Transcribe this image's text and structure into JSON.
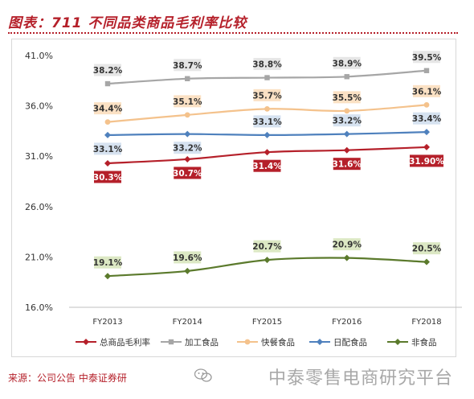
{
  "header": {
    "title": "图表：711 不同品类商品毛利率比较"
  },
  "footer": {
    "source": "来源：公司公告  中泰证券研",
    "watermark": "中泰零售电商研究平台"
  },
  "chart_data": {
    "type": "line",
    "categories": [
      "FY2013",
      "FY2014",
      "FY2015",
      "FY2016",
      "FY2018"
    ],
    "ylim": [
      16.0,
      41.0
    ],
    "yticks": [
      "16.0%",
      "21.0%",
      "26.0%",
      "31.0%",
      "36.0%",
      "41.0%"
    ],
    "ytick_values": [
      16,
      21,
      26,
      31,
      36,
      41
    ],
    "legend_position": "bottom",
    "series": [
      {
        "name": "总商品毛利率",
        "color": "#b5202a",
        "marker": "diamond",
        "values": [
          30.3,
          30.7,
          31.4,
          31.6,
          31.9
        ],
        "labels": [
          "30.3%",
          "30.7%",
          "31.4%",
          "31.6%",
          "31.90%"
        ],
        "label_style": "filled",
        "label_bg": "#b5202a",
        "label_fg": "#ffffff",
        "label_side": "below"
      },
      {
        "name": "加工食品",
        "color": "#a6a6a6",
        "marker": "square",
        "values": [
          38.2,
          38.7,
          38.8,
          38.9,
          39.5
        ],
        "labels": [
          "38.2%",
          "38.7%",
          "38.8%",
          "38.9%",
          "39.5%"
        ],
        "label_style": "box",
        "label_bg": "#e6e6e6",
        "label_fg": "#333333",
        "label_side": "above"
      },
      {
        "name": "快餐食品",
        "color": "#f4c28c",
        "marker": "circle",
        "values": [
          34.4,
          35.1,
          35.7,
          35.5,
          36.1
        ],
        "labels": [
          "34.4%",
          "35.1%",
          "35.7%",
          "35.5%",
          "36.1%"
        ],
        "label_style": "box",
        "label_bg": "#fbe1c4",
        "label_fg": "#333333",
        "label_side": "above"
      },
      {
        "name": "日配食品",
        "color": "#4f81bd",
        "marker": "diamond",
        "values": [
          33.1,
          33.2,
          33.1,
          33.2,
          33.4
        ],
        "labels": [
          "33.1%",
          "33.2%",
          "33.1%",
          "33.2%",
          "33.4%"
        ],
        "label_style": "box",
        "label_bg": "#d6e2f0",
        "label_fg": "#333333",
        "label_side": "mixed"
      },
      {
        "name": "非食品",
        "color": "#5b7a2c",
        "marker": "diamond",
        "values": [
          19.1,
          19.6,
          20.7,
          20.9,
          20.5
        ],
        "labels": [
          "19.1%",
          "19.6%",
          "20.7%",
          "20.9%",
          "20.5%"
        ],
        "label_style": "box",
        "label_bg": "#dce8c4",
        "label_fg": "#333333",
        "label_side": "above"
      }
    ]
  }
}
